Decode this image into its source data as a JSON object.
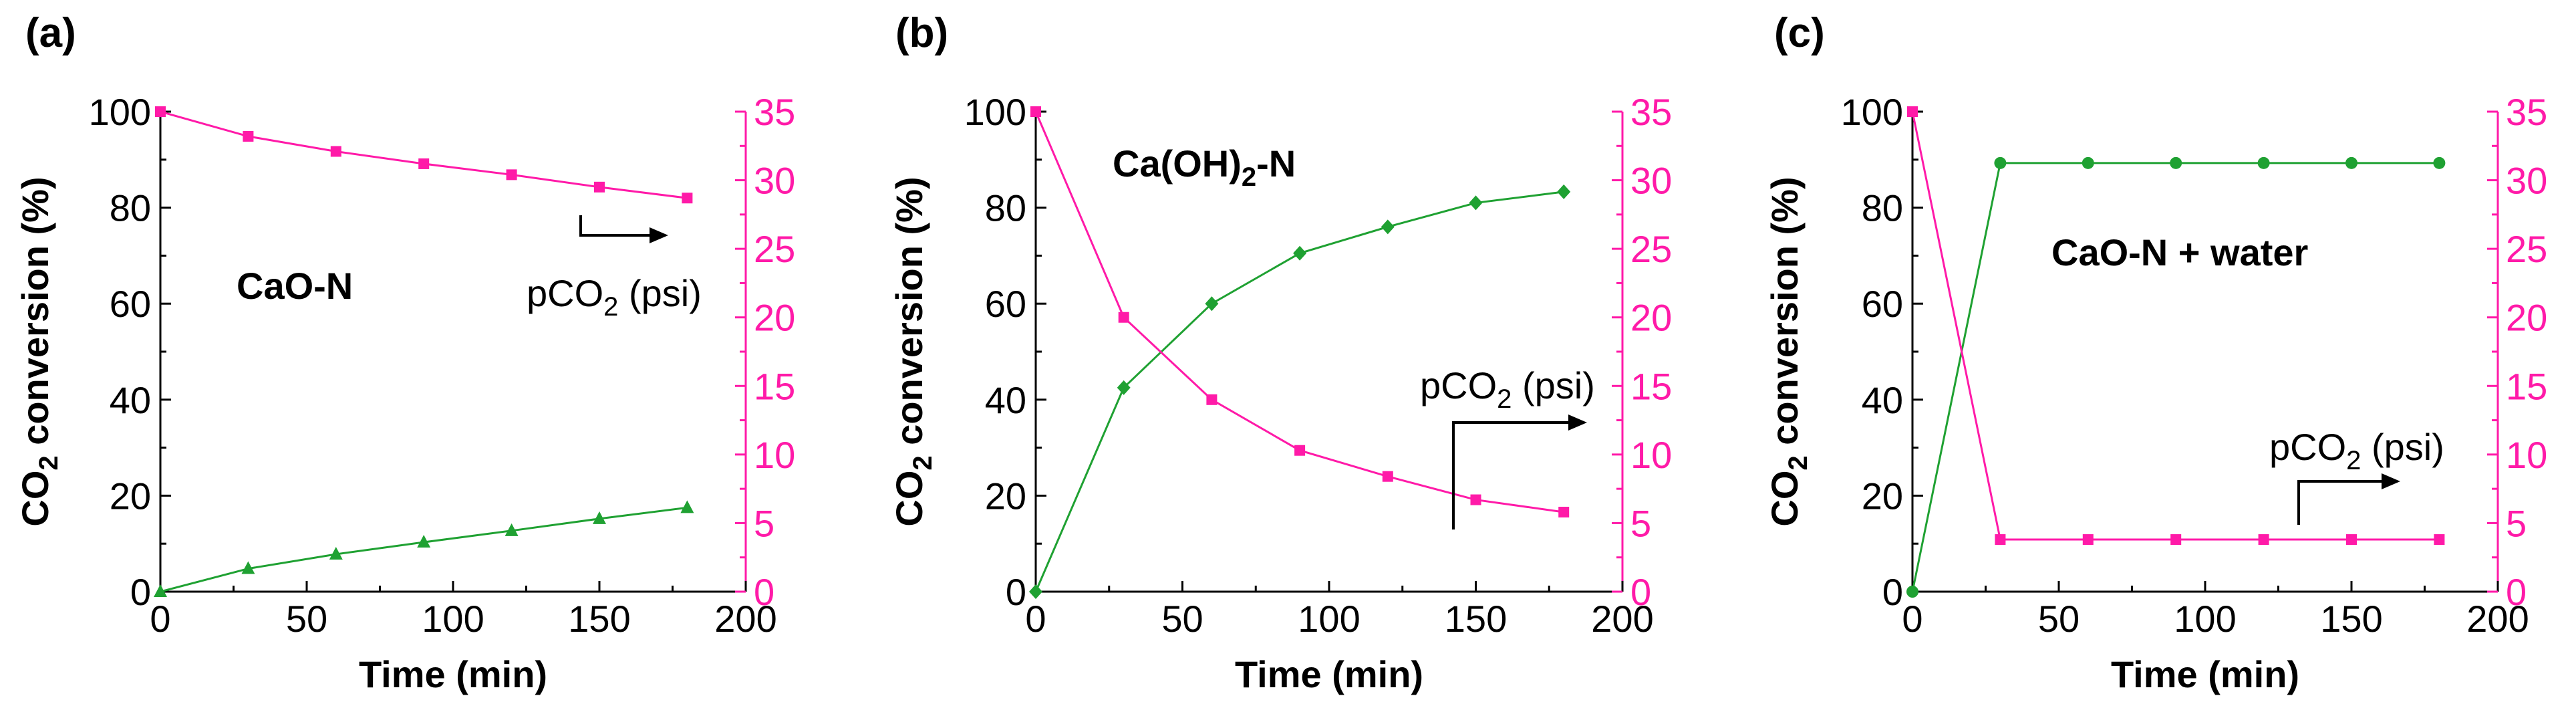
{
  "colors": {
    "conversion": "#1fa132",
    "pressure": "#ff1aa8",
    "axis": "#000000"
  },
  "shared": {
    "xlabel": "Time (min)",
    "ylabel_left_main": "CO",
    "ylabel_left_sub": "2",
    "ylabel_left_rest": " conversion (%)",
    "pco2_main": "pCO",
    "pco2_sub": "2",
    "pco2_rest": " (psi)"
  },
  "chart_data": [
    {
      "type": "line",
      "panel_label": "(a)",
      "inset_label": "CaO-N",
      "xlabel": "Time (min)",
      "ylabel": "CO2 conversion (%)",
      "y2label": "pCO2 (psi)",
      "xlim": [
        0,
        200
      ],
      "ylim": [
        0,
        100
      ],
      "y2lim": [
        0,
        35
      ],
      "xticks": [
        "0",
        "50",
        "100",
        "150",
        "200"
      ],
      "yticks": [
        "0",
        "20",
        "40",
        "60",
        "80",
        "100"
      ],
      "y2ticks": [
        "0",
        "5",
        "10",
        "15",
        "20",
        "25",
        "30",
        "35"
      ],
      "series": [
        {
          "name": "CO2 conversion (%)",
          "axis": "left",
          "marker": "triangle",
          "x": [
            0,
            30,
            60,
            90,
            120,
            150,
            180
          ],
          "values": [
            0,
            4.8,
            7.8,
            10.3,
            12.7,
            15.2,
            17.5
          ]
        },
        {
          "name": "pCO2 (psi)",
          "axis": "right",
          "marker": "square",
          "x": [
            0,
            30,
            60,
            90,
            120,
            150,
            180
          ],
          "values": [
            35,
            33.2,
            32.1,
            31.2,
            30.4,
            29.5,
            28.7
          ]
        }
      ]
    },
    {
      "type": "line",
      "panel_label": "(b)",
      "inset_label_main": "Ca(OH)",
      "inset_label_sub": "2",
      "inset_label_rest": "-N",
      "xlabel": "Time (min)",
      "ylabel": "CO2 conversion (%)",
      "y2label": "pCO2 (psi)",
      "xlim": [
        0,
        200
      ],
      "ylim": [
        0,
        100
      ],
      "y2lim": [
        0,
        35
      ],
      "xticks": [
        "0",
        "50",
        "100",
        "150",
        "200"
      ],
      "yticks": [
        "0",
        "20",
        "40",
        "60",
        "80",
        "100"
      ],
      "y2ticks": [
        "0",
        "5",
        "10",
        "15",
        "20",
        "25",
        "30",
        "35"
      ],
      "series": [
        {
          "name": "CO2 conversion (%)",
          "axis": "left",
          "marker": "diamond",
          "x": [
            0,
            30,
            60,
            90,
            120,
            150,
            180
          ],
          "values": [
            0,
            42.5,
            60,
            70.5,
            76,
            81,
            83.3
          ]
        },
        {
          "name": "pCO2 (psi)",
          "axis": "right",
          "marker": "square",
          "x": [
            0,
            30,
            60,
            90,
            120,
            150,
            180
          ],
          "values": [
            35,
            20,
            14,
            10.3,
            8.4,
            6.7,
            5.8
          ]
        }
      ]
    },
    {
      "type": "line",
      "panel_label": "(c)",
      "inset_label": "CaO-N + water",
      "xlabel": "Time (min)",
      "ylabel": "CO2 conversion (%)",
      "y2label": "pCO2 (psi)",
      "xlim": [
        0,
        200
      ],
      "ylim": [
        0,
        100
      ],
      "y2lim": [
        0,
        35
      ],
      "xticks": [
        "0",
        "50",
        "100",
        "150",
        "200"
      ],
      "yticks": [
        "0",
        "20",
        "40",
        "60",
        "80",
        "100"
      ],
      "y2ticks": [
        "0",
        "5",
        "10",
        "15",
        "20",
        "25",
        "30",
        "35"
      ],
      "series": [
        {
          "name": "CO2 conversion (%)",
          "axis": "left",
          "marker": "circle",
          "x": [
            0,
            30,
            60,
            90,
            120,
            150,
            180
          ],
          "values": [
            0,
            89.3,
            89.3,
            89.3,
            89.3,
            89.3,
            89.3
          ]
        },
        {
          "name": "pCO2 (psi)",
          "axis": "right",
          "marker": "square",
          "x": [
            0,
            30,
            60,
            90,
            120,
            150,
            180
          ],
          "values": [
            35,
            3.8,
            3.8,
            3.8,
            3.8,
            3.8,
            3.8
          ]
        }
      ]
    }
  ]
}
